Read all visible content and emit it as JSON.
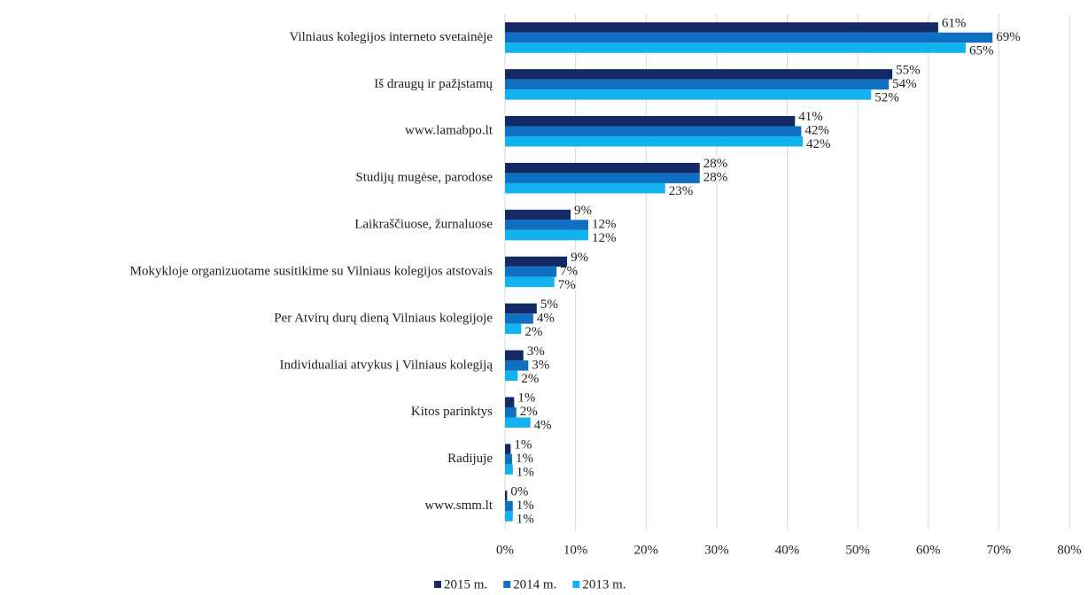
{
  "chart_data": {
    "type": "hbar",
    "categories": [
      "Vilniaus kolegijos interneto svetainėje",
      "Iš draugų ir pažįstamų",
      "www.lamabpo.lt",
      "Studijų mugėse, parodose",
      "Laikraščiuose, žurnaluose",
      "Mokykloje organizuotame susitikime su Vilniaus kolegijos atstovais",
      "Per Atvirų durų dieną Vilniaus kolegijoje",
      "Individualiai atvykus į Vilniaus kolegiją",
      "Kitos parinktys",
      "Radijuje",
      "www.smm.lt"
    ],
    "series": [
      {
        "name": "2015 m.",
        "color": "#142a66",
        "values": [
          61.4,
          54.9,
          41.1,
          27.6,
          9.3,
          8.8,
          4.5,
          2.6,
          1.3,
          0.8,
          0.3
        ],
        "value_labels": [
          "61%",
          "55%",
          "41%",
          "28%",
          "9%",
          "9%",
          "5%",
          "3%",
          "1%",
          "1%",
          "0%"
        ]
      },
      {
        "name": "2014 m.",
        "color": "#0f6fc0",
        "values": [
          69.1,
          54.4,
          42.0,
          27.6,
          11.8,
          7.3,
          4.0,
          3.3,
          1.6,
          1.0,
          1.1
        ],
        "value_labels": [
          "69%",
          "54%",
          "42%",
          "28%",
          "12%",
          "7%",
          "4%",
          "3%",
          "2%",
          "1%",
          "1%"
        ]
      },
      {
        "name": "2013 m.",
        "color": "#11b2ef",
        "values": [
          65.3,
          51.9,
          42.2,
          22.7,
          11.8,
          7.0,
          2.3,
          1.8,
          3.6,
          1.1,
          1.1
        ],
        "value_labels": [
          "65%",
          "52%",
          "42%",
          "23%",
          "12%",
          "7%",
          "2%",
          "2%",
          "4%",
          "1%",
          "1%"
        ]
      }
    ],
    "xlim": [
      0,
      80
    ],
    "xticks": [
      {
        "value": 0,
        "label": "0%"
      },
      {
        "value": 10,
        "label": "10%"
      },
      {
        "value": 20,
        "label": "20%"
      },
      {
        "value": 30,
        "label": "30%"
      },
      {
        "value": 40,
        "label": "40%"
      },
      {
        "value": 50,
        "label": "50%"
      },
      {
        "value": 60,
        "label": "60%"
      },
      {
        "value": 70,
        "label": "70%"
      },
      {
        "value": 80,
        "label": "80%"
      }
    ],
    "grid": true,
    "legend": "bottom"
  }
}
